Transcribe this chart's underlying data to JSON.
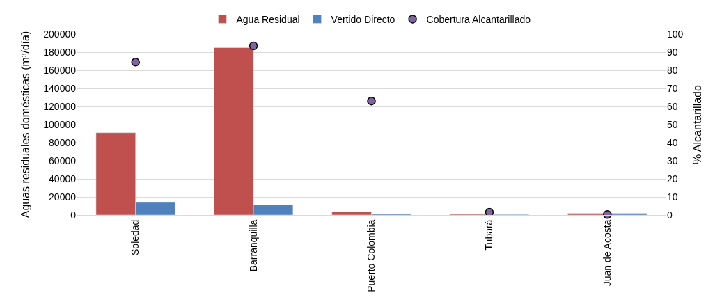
{
  "chart_data": {
    "type": "bar",
    "categories": [
      "Soledad",
      "Barranquilla",
      "Puerto Colombia",
      "Tubará",
      "Juan de Acosta"
    ],
    "series": [
      {
        "name": "Agua Residual",
        "color": "#c0504d",
        "values": [
          91000,
          185000,
          3500,
          800,
          2000
        ]
      },
      {
        "name": "Vertido Directo",
        "color": "#4f81bd",
        "values": [
          14000,
          11500,
          1000,
          600,
          2000
        ]
      },
      {
        "name": "Cobertura Alcantarillado",
        "color": "#8064a2",
        "type": "scatter",
        "axis": "y2",
        "marker": "circle",
        "values": [
          84.5,
          93.5,
          63,
          1.5,
          0.3
        ]
      }
    ],
    "ylabel": "Aguas residuales domésticas (m³/día)",
    "y2label": "% Alcantarillado",
    "ylim": [
      0,
      200000
    ],
    "yticks": [
      0,
      20000,
      40000,
      60000,
      80000,
      100000,
      120000,
      140000,
      160000,
      180000,
      200000
    ],
    "y2lim": [
      0,
      100
    ],
    "y2ticks": [
      0,
      10,
      20,
      30,
      40,
      50,
      60,
      70,
      80,
      90,
      100
    ],
    "grid": "y",
    "legend": "top"
  }
}
